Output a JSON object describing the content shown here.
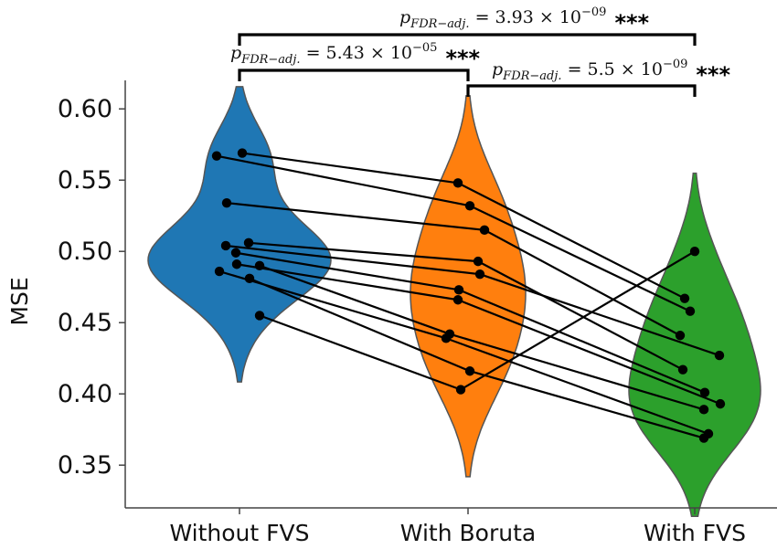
{
  "chart_data": {
    "type": "violin",
    "title": "",
    "xlabel": "",
    "ylabel": "MSE",
    "categories": [
      "Without FVS",
      "With Boruta",
      "With FVS"
    ],
    "ylim": [
      0.32,
      0.62
    ],
    "yticks": [
      "0.35",
      "0.40",
      "0.45",
      "0.50",
      "0.55",
      "0.60"
    ],
    "series": [
      {
        "category": "Without FVS",
        "color": "#1f77b4",
        "values": [
          0.569,
          0.567,
          0.534,
          0.506,
          0.504,
          0.499,
          0.491,
          0.49,
          0.486,
          0.481,
          0.455
        ]
      },
      {
        "category": "With Boruta",
        "color": "#ff7f0e",
        "values": [
          0.548,
          0.532,
          0.515,
          0.493,
          0.484,
          0.473,
          0.466,
          0.442,
          0.439,
          0.416,
          0.403
        ]
      },
      {
        "category": "With FVS",
        "color": "#2ca02c",
        "values": [
          0.5,
          0.467,
          0.458,
          0.441,
          0.427,
          0.417,
          0.401,
          0.393,
          0.389,
          0.372,
          0.369
        ]
      }
    ],
    "pairs": [
      [
        0.569,
        0.548,
        0.467
      ],
      [
        0.567,
        0.532,
        0.458
      ],
      [
        0.534,
        0.515,
        0.441
      ],
      [
        0.506,
        0.493,
        0.417
      ],
      [
        0.504,
        0.484,
        0.427
      ],
      [
        0.499,
        0.473,
        0.401
      ],
      [
        0.491,
        0.466,
        0.393
      ],
      [
        0.49,
        0.442,
        0.389
      ],
      [
        0.486,
        0.439,
        0.372
      ],
      [
        0.481,
        0.416,
        0.369
      ],
      [
        0.455,
        0.403,
        0.5
      ]
    ],
    "annotations": [
      {
        "from": 0,
        "to": 1,
        "p_symbol": "p",
        "p_subscript": "FDR−adj.",
        "p_mantissa": "5.43",
        "p_exponent": "−05",
        "stars": "***"
      },
      {
        "from": 1,
        "to": 2,
        "p_symbol": "p",
        "p_subscript": "FDR−adj.",
        "p_mantissa": "5.5",
        "p_exponent": "−09",
        "stars": "***"
      },
      {
        "from": 0,
        "to": 2,
        "p_symbol": "p",
        "p_subscript": "FDR−adj.",
        "p_mantissa": "3.93",
        "p_exponent": "−09",
        "stars": "***"
      }
    ],
    "grid": false,
    "legend": "none"
  }
}
